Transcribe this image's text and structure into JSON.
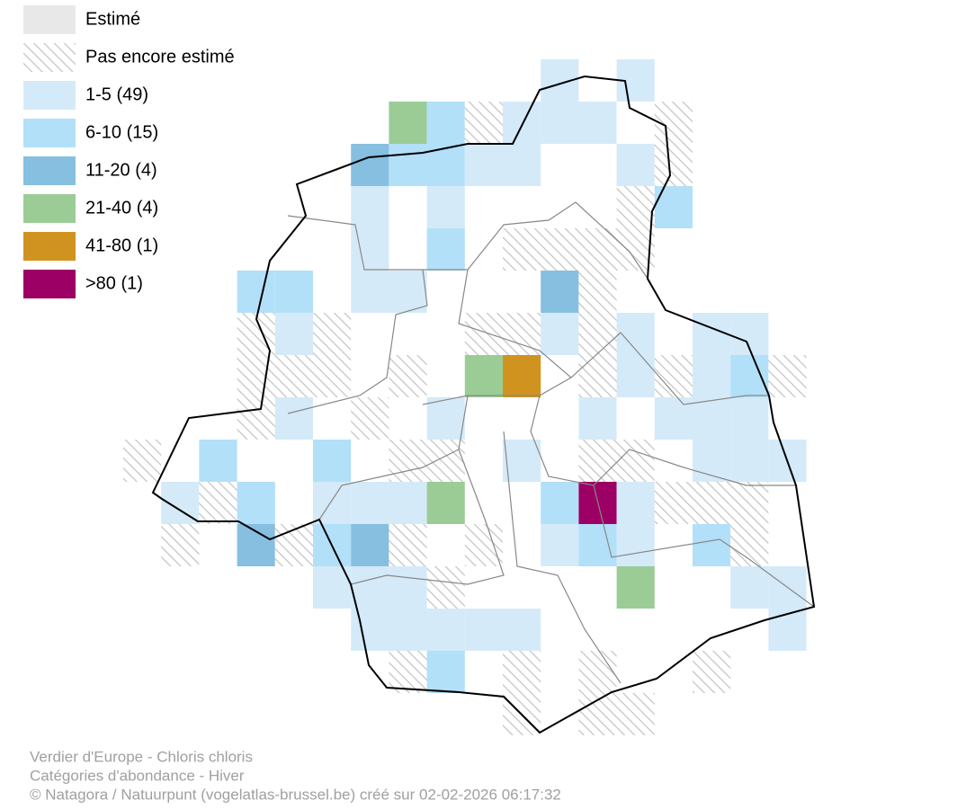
{
  "legend": [
    {
      "label": "Estimé",
      "color": "#e8e8e8"
    },
    {
      "label": "Pas encore estimé",
      "color": "hatch"
    },
    {
      "label": "1-5 (49)",
      "color": "#d4eaf8"
    },
    {
      "label": "6-10 (15)",
      "color": "#b2e0f8"
    },
    {
      "label": "11-20 (4)",
      "color": "#86bfe0"
    },
    {
      "label": "21-40 (4)",
      "color": "#9bcc96"
    },
    {
      "label": "41-80 (1)",
      "color": "#d09320"
    },
    {
      "label": ">80 (1)",
      "color": "#9c0064"
    }
  ],
  "caption": [
    "Verdier d'Europe - Chloris chloris",
    "Catégories d'abondance - Hiver",
    "© Natagora / Natuurpunt (vogelatlas-brussel.be) créé sur 02-02-2026 06:17:32"
  ]
}
